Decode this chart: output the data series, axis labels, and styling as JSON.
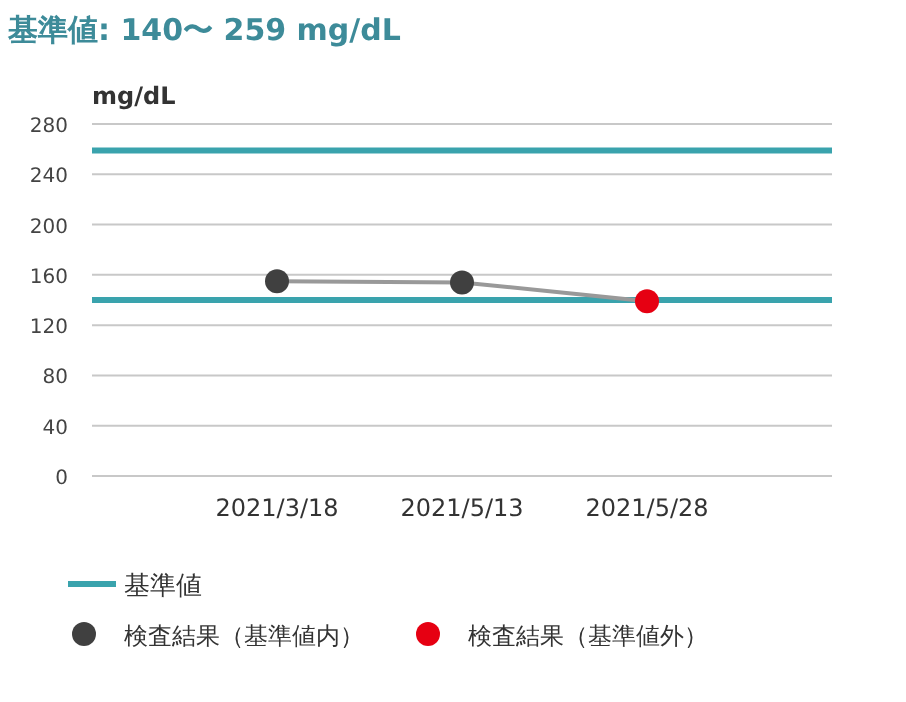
{
  "chart_data": {
    "type": "line",
    "title": "基準値: 140〜 259 mg/dL",
    "ylabel": "mg/dL",
    "categories": [
      "2021/3/18",
      "2021/5/13",
      "2021/5/28"
    ],
    "series": [
      {
        "color": "#999999",
        "marker": "none",
        "values": [
          155,
          154,
          139
        ]
      },
      {
        "type": "scatter",
        "name": "検査結果（基準値内）",
        "color": "#404040",
        "values": [
          155,
          154,
          null
        ]
      },
      {
        "type": "scatter",
        "name": "検査結果（基準値外）",
        "color": "#e60012",
        "values": [
          null,
          null,
          139
        ]
      }
    ],
    "ylim": [
      0,
      280
    ],
    "yticks": [
      0,
      40,
      80,
      120,
      160,
      200,
      240,
      280
    ],
    "ref_lines": [
      {
        "axis": "y",
        "value": 140,
        "label": "基準値",
        "color": "#3aa3ad"
      },
      {
        "axis": "y",
        "value": 259,
        "color": "#3aa3ad"
      }
    ],
    "grid": "y",
    "legend": "bottom",
    "marker": "circle"
  }
}
